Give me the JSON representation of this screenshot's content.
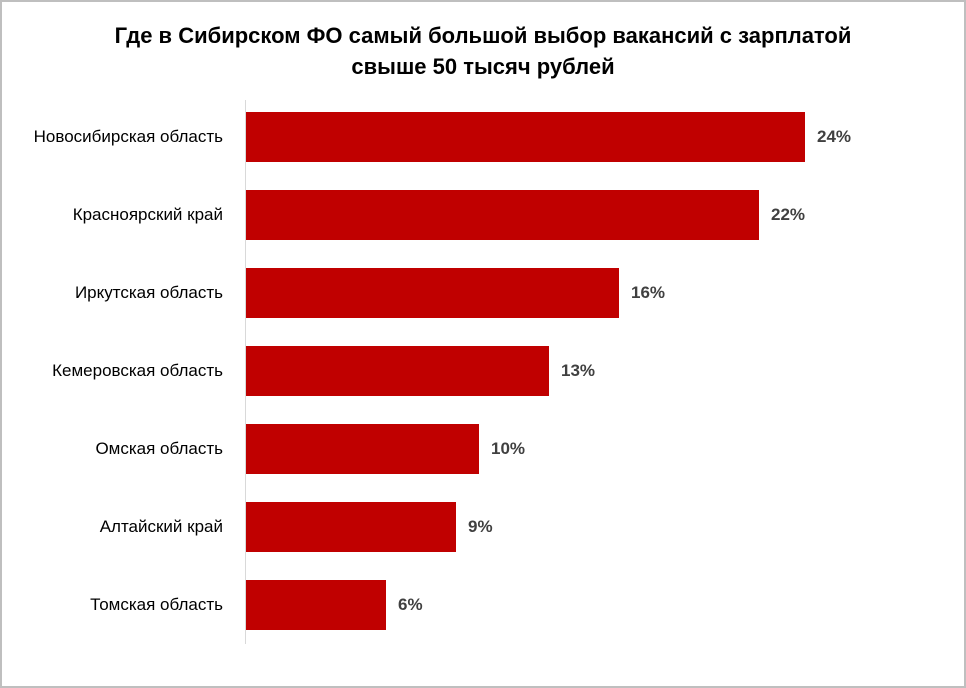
{
  "chart_data": {
    "type": "bar",
    "orientation": "horizontal",
    "title": "Где в Сибирском ФО самый большой выбор вакансий с зарплатой свыше 50 тысяч рублей",
    "categories": [
      "Новосибирская область",
      "Красноярский край",
      "Иркутская область",
      "Кемеровская область",
      "Омская область",
      "Алтайский край",
      "Томская область"
    ],
    "values": [
      24,
      22,
      16,
      13,
      10,
      9,
      6
    ],
    "value_labels": [
      "24%",
      "22%",
      "16%",
      "13%",
      "10%",
      "9%",
      "6%"
    ],
    "xlabel": "",
    "ylabel": "",
    "xlim": [
      0,
      24
    ],
    "grid": false,
    "legend": false,
    "bar_color": "#c00000",
    "value_label_color": "#404040",
    "axis_line_color": "#d9d9d9"
  }
}
